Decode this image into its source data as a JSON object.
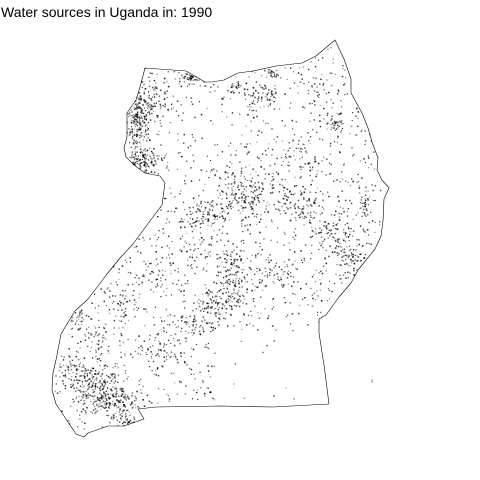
{
  "map": {
    "title": "Water sources in Uganda in: 1990",
    "colors": {
      "background": "#ffffff",
      "outline": "#000000",
      "point": "#000000"
    }
  }
}
